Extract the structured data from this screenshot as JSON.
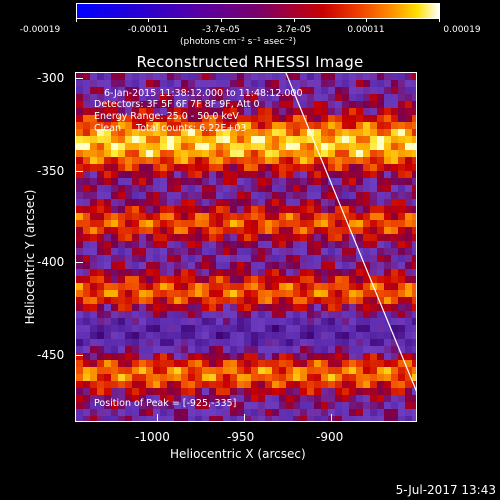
{
  "colorbar": {
    "tick_labels": [
      "-0.00019",
      "-0.00011",
      "-3.7e-05",
      "3.7e-05",
      "0.00011",
      "0.00019"
    ],
    "units": "(photons cm⁻² s⁻¹ asec⁻²)"
  },
  "plot": {
    "title": "Reconstructed RHESSI Image",
    "time_range": "6-Jan-2015 11:38:12.000 to 11:48:12.000",
    "detectors": "Detectors: 3F 5F 6F 7F 8F 9F, Att 0",
    "energy_range": "Energy Range: 25.0 - 50.0 keV",
    "method": "Clean     Total counts: 6.22E+03",
    "peak": "Position of Peak = [-925,-335]",
    "xlabel": "Heliocentric X (arcsec)",
    "ylabel": "Heliocentric Y (arcsec)",
    "x_ticks": [
      "-1000",
      "-950",
      "-900"
    ],
    "y_ticks": [
      "-300",
      "-350",
      "-400",
      "-450"
    ]
  },
  "footer": {
    "date": "5-Jul-2017 13:43"
  }
}
